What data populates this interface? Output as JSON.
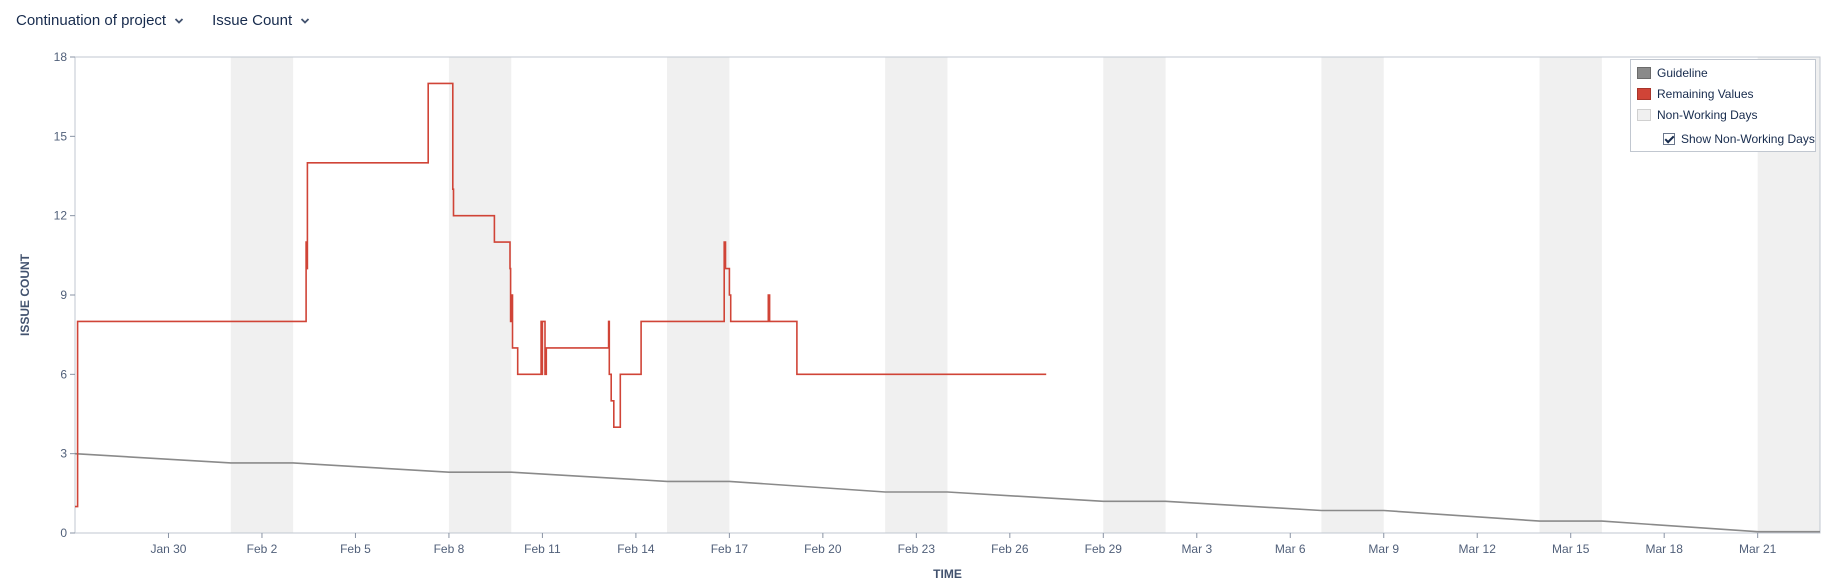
{
  "toolbar": {
    "project_label": "Continuation of project",
    "metric_label": "Issue Count"
  },
  "legend": {
    "guideline": "Guideline",
    "remaining": "Remaining Values",
    "non_working": "Non-Working Days",
    "show_non_working": "Show Non-Working Days",
    "show_non_working_checked": true
  },
  "colors": {
    "remaining": "#d04437",
    "guideline": "#8a8a8a",
    "non_working": "#f0f0f0"
  },
  "chart_data": {
    "type": "line",
    "xlabel": "TIME",
    "ylabel": "ISSUE COUNT",
    "ylim": [
      0,
      18
    ],
    "yticks": [
      0,
      3,
      6,
      9,
      12,
      15,
      18
    ],
    "xlim": [
      "2024-01-27T12:00",
      "2024-03-23T12:00"
    ],
    "xticks": [
      "Jan 30",
      "Feb 2",
      "Feb 5",
      "Feb 8",
      "Feb 11",
      "Feb 14",
      "Feb 17",
      "Feb 20",
      "Feb 23",
      "Feb 26",
      "Feb 29",
      "Mar 3",
      "Mar 6",
      "Mar 9",
      "Mar 12",
      "Mar 15",
      "Mar 18",
      "Mar 21"
    ],
    "xtick_dates": [
      "2024-01-30",
      "2024-02-02",
      "2024-02-05",
      "2024-02-08",
      "2024-02-11",
      "2024-02-14",
      "2024-02-17",
      "2024-02-20",
      "2024-02-23",
      "2024-02-26",
      "2024-02-29",
      "2024-03-03",
      "2024-03-06",
      "2024-03-09",
      "2024-03-12",
      "2024-03-15",
      "2024-03-18",
      "2024-03-21"
    ],
    "non_working_periods": [
      [
        "2024-02-01T12:00",
        "2024-02-03T12:00"
      ],
      [
        "2024-02-08T12:00",
        "2024-02-10T12:00"
      ],
      [
        "2024-02-15T12:00",
        "2024-02-17T12:00"
      ],
      [
        "2024-02-22T12:00",
        "2024-02-24T12:00"
      ],
      [
        "2024-02-29T12:00",
        "2024-03-02T12:00"
      ],
      [
        "2024-03-07T12:00",
        "2024-03-09T12:00"
      ],
      [
        "2024-03-14T12:00",
        "2024-03-16T12:00"
      ],
      [
        "2024-03-21T12:00",
        "2024-03-23T12:00"
      ]
    ],
    "series": [
      {
        "name": "Guideline",
        "style": "line",
        "points": [
          [
            "2024-01-27T12:00",
            3.0
          ],
          [
            "2024-02-01T12:00",
            2.65
          ],
          [
            "2024-02-03T12:00",
            2.65
          ],
          [
            "2024-02-08T12:00",
            2.3
          ],
          [
            "2024-02-10T12:00",
            2.3
          ],
          [
            "2024-02-15T12:00",
            1.95
          ],
          [
            "2024-02-17T12:00",
            1.95
          ],
          [
            "2024-02-22T12:00",
            1.55
          ],
          [
            "2024-02-24T12:00",
            1.55
          ],
          [
            "2024-02-29T12:00",
            1.2
          ],
          [
            "2024-03-02T12:00",
            1.2
          ],
          [
            "2024-03-07T12:00",
            0.85
          ],
          [
            "2024-03-09T12:00",
            0.85
          ],
          [
            "2024-03-14T12:00",
            0.45
          ],
          [
            "2024-03-16T12:00",
            0.45
          ],
          [
            "2024-03-21T12:00",
            0.05
          ],
          [
            "2024-03-23T12:00",
            0.05
          ]
        ]
      },
      {
        "name": "Remaining Values",
        "style": "step",
        "points": [
          [
            "2024-01-27T12:00",
            1
          ],
          [
            "2024-01-27T14:00",
            8
          ],
          [
            "2024-02-03T22:00",
            11
          ],
          [
            "2024-02-03T22:30",
            10
          ],
          [
            "2024-02-03T23:00",
            14
          ],
          [
            "2024-02-07T20:00",
            17
          ],
          [
            "2024-02-08T15:00",
            13
          ],
          [
            "2024-02-08T15:30",
            12
          ],
          [
            "2024-02-09T23:00",
            11
          ],
          [
            "2024-02-10T11:00",
            10
          ],
          [
            "2024-02-10T11:30",
            8
          ],
          [
            "2024-02-10T12:00",
            9
          ],
          [
            "2024-02-10T13:00",
            7
          ],
          [
            "2024-02-10T17:00",
            6
          ],
          [
            "2024-02-11T11:00",
            8
          ],
          [
            "2024-02-11T11:30",
            6
          ],
          [
            "2024-02-11T12:00",
            8
          ],
          [
            "2024-02-11T14:00",
            6
          ],
          [
            "2024-02-11T15:00",
            7
          ],
          [
            "2024-02-13T15:00",
            8
          ],
          [
            "2024-02-13T15:30",
            6
          ],
          [
            "2024-02-13T17:00",
            5
          ],
          [
            "2024-02-13T19:00",
            4
          ],
          [
            "2024-02-14T00:00",
            6
          ],
          [
            "2024-02-14T16:00",
            8
          ],
          [
            "2024-02-17T08:00",
            11
          ],
          [
            "2024-02-17T09:00",
            10
          ],
          [
            "2024-02-17T12:00",
            9
          ],
          [
            "2024-02-17T13:00",
            8
          ],
          [
            "2024-02-18T18:00",
            9
          ],
          [
            "2024-02-18T19:00",
            8
          ],
          [
            "2024-02-19T16:00",
            6
          ],
          [
            "2024-02-27T16:00",
            6
          ]
        ]
      }
    ]
  }
}
